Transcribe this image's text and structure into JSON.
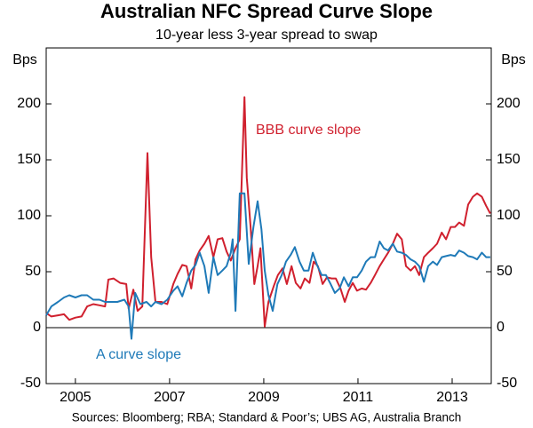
{
  "chart_data": {
    "type": "line",
    "title": "Australian NFC Spread Curve Slope",
    "subtitle": "10-year less 3-year spread to swap",
    "y_unit_left": "Bps",
    "y_unit_right": "Bps",
    "source": "Sources: Bloomberg; RBA; Standard & Poor’s; UBS AG, Australia Branch",
    "annotations": [
      "BBB curve slope",
      "A curve slope"
    ],
    "xlim": [
      2004.88,
      2014.33
    ],
    "xticks": [
      {
        "value": 2005.5,
        "label": "2005"
      },
      {
        "value": 2007.5,
        "label": "2007"
      },
      {
        "value": 2009.5,
        "label": "2009"
      },
      {
        "value": 2011.5,
        "label": "2011"
      },
      {
        "value": 2013.5,
        "label": "2013"
      }
    ],
    "ylim": [
      -50,
      250
    ],
    "yticks": [
      -50,
      0,
      50,
      100,
      150,
      200
    ],
    "y2lim": [
      -50,
      250
    ],
    "y2ticks": [
      -50,
      0,
      50,
      100,
      150,
      200
    ],
    "series": [
      {
        "name": "BBB curve slope",
        "color": "#d0202e",
        "x": [
          2004.88,
          2004.99,
          2005.13,
          2005.26,
          2005.37,
          2005.5,
          2005.63,
          2005.75,
          2005.88,
          2006.01,
          2006.13,
          2006.2,
          2006.31,
          2006.45,
          2006.58,
          2006.63,
          2006.73,
          2006.82,
          2006.92,
          2007.03,
          2007.11,
          2007.2,
          2007.33,
          2007.45,
          2007.58,
          2007.67,
          2007.77,
          2007.86,
          2007.96,
          2008.05,
          2008.14,
          2008.24,
          2008.33,
          2008.43,
          2008.52,
          2008.62,
          2008.71,
          2008.8,
          2008.9,
          2008.99,
          2009.09,
          2009.14,
          2009.22,
          2009.3,
          2009.37,
          2009.43,
          2009.52,
          2009.6,
          2009.71,
          2009.8,
          2009.9,
          2009.99,
          2010.09,
          2010.18,
          2010.28,
          2010.37,
          2010.47,
          2010.56,
          2010.65,
          2010.75,
          2010.84,
          2010.94,
          2011.03,
          2011.13,
          2011.22,
          2011.3,
          2011.39,
          2011.48,
          2011.58,
          2011.67,
          2011.77,
          2011.86,
          2011.96,
          2012.05,
          2012.14,
          2012.24,
          2012.33,
          2012.43,
          2012.52,
          2012.62,
          2012.71,
          2012.8,
          2012.9,
          2012.99,
          2013.09,
          2013.18,
          2013.28,
          2013.37,
          2013.47,
          2013.56,
          2013.65,
          2013.75,
          2013.84,
          2013.94,
          2014.03,
          2014.13,
          2014.22,
          2014.31
        ],
        "values": [
          13,
          10,
          11,
          12,
          7,
          9,
          10,
          19,
          21,
          20,
          19,
          43,
          44,
          40,
          39,
          17,
          34,
          15,
          19,
          156,
          63,
          23,
          23,
          21,
          39,
          48,
          56,
          55,
          35,
          61,
          69,
          75,
          82,
          63,
          79,
          80,
          68,
          60,
          71,
          79,
          206,
          134,
          90,
          39,
          55,
          71,
          1,
          23,
          37,
          47,
          53,
          39,
          55,
          40,
          35,
          44,
          40,
          59,
          55,
          39,
          45,
          44,
          44,
          35,
          23,
          33,
          40,
          33,
          35,
          34,
          40,
          47,
          55,
          61,
          67,
          75,
          84,
          79,
          55,
          51,
          55,
          47,
          63,
          67,
          71,
          75,
          85,
          79,
          90,
          90,
          94,
          91,
          110,
          117,
          120,
          117,
          109,
          102
        ]
      },
      {
        "name": "A curve slope",
        "color": "#1f7ab8",
        "x": [
          2004.88,
          2004.99,
          2005.13,
          2005.26,
          2005.37,
          2005.5,
          2005.63,
          2005.75,
          2005.88,
          2006.01,
          2006.13,
          2006.26,
          2006.39,
          2006.54,
          2006.63,
          2006.69,
          2006.77,
          2006.88,
          2007.01,
          2007.11,
          2007.2,
          2007.33,
          2007.45,
          2007.58,
          2007.67,
          2007.77,
          2007.86,
          2007.96,
          2008.05,
          2008.14,
          2008.24,
          2008.33,
          2008.43,
          2008.52,
          2008.62,
          2008.71,
          2008.8,
          2008.84,
          2008.9,
          2008.99,
          2009.09,
          2009.18,
          2009.28,
          2009.37,
          2009.45,
          2009.52,
          2009.6,
          2009.69,
          2009.79,
          2009.88,
          2009.97,
          2010.07,
          2010.16,
          2010.26,
          2010.35,
          2010.45,
          2010.54,
          2010.64,
          2010.73,
          2010.82,
          2010.92,
          2011.01,
          2011.11,
          2011.2,
          2011.3,
          2011.39,
          2011.48,
          2011.58,
          2011.67,
          2011.77,
          2011.86,
          2011.96,
          2012.05,
          2012.14,
          2012.24,
          2012.33,
          2012.43,
          2012.52,
          2012.62,
          2012.71,
          2012.8,
          2012.9,
          2012.99,
          2013.09,
          2013.18,
          2013.28,
          2013.37,
          2013.47,
          2013.56,
          2013.65,
          2013.75,
          2013.84,
          2013.94,
          2014.03,
          2014.13,
          2014.22,
          2014.31
        ],
        "values": [
          11,
          19,
          23,
          27,
          29,
          27,
          29,
          29,
          25,
          25,
          23,
          23,
          23,
          25,
          19,
          -10,
          31,
          21,
          23,
          19,
          23,
          21,
          25,
          33,
          37,
          28,
          40,
          51,
          56,
          67,
          55,
          31,
          63,
          47,
          51,
          55,
          67,
          79,
          15,
          120,
          120,
          57,
          90,
          113,
          88,
          51,
          29,
          15,
          39,
          47,
          59,
          65,
          72,
          59,
          51,
          51,
          67,
          55,
          47,
          47,
          39,
          31,
          35,
          45,
          37,
          45,
          45,
          51,
          59,
          63,
          63,
          77,
          71,
          69,
          75,
          68,
          67,
          65,
          61,
          59,
          55,
          41,
          55,
          59,
          56,
          63,
          64,
          65,
          64,
          69,
          67,
          64,
          63,
          61,
          67,
          63,
          63
        ]
      }
    ]
  }
}
